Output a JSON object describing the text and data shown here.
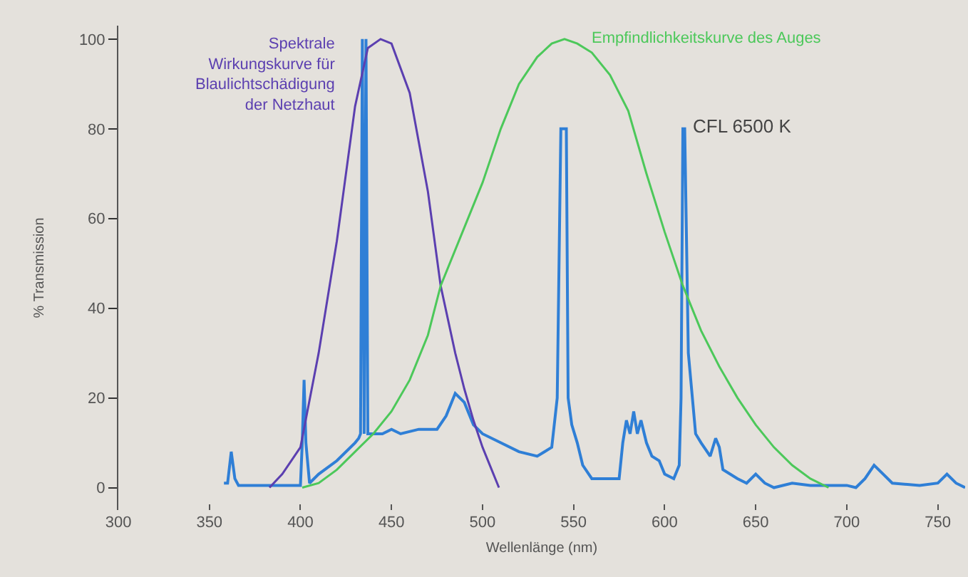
{
  "chart_data": {
    "type": "line",
    "xlabel": "Wellenlänge (nm)",
    "ylabel": "% Transmission",
    "xlim": [
      300,
      765
    ],
    "ylim": [
      -5,
      103
    ],
    "xticks": [
      300,
      350,
      400,
      450,
      500,
      550,
      600,
      650,
      700,
      750
    ],
    "yticks": [
      0,
      20,
      40,
      60,
      80,
      100
    ],
    "grid": false,
    "legend": false,
    "marker": "none",
    "line_style": "solid",
    "series": [
      {
        "color": "#2f7fd6",
        "x": [
          358,
          360,
          362,
          364,
          366,
          380,
          400,
          401,
          402,
          403,
          405,
          410,
          420,
          430,
          432,
          433,
          434,
          435,
          436,
          437,
          440,
          445,
          450,
          455,
          465,
          475,
          480,
          485,
          490,
          495,
          500,
          510,
          520,
          530,
          538,
          541,
          543,
          544,
          546,
          547,
          549,
          552,
          555,
          560,
          575,
          577,
          579,
          581,
          583,
          585,
          587,
          590,
          593,
          597,
          600,
          605,
          608,
          609,
          610,
          611,
          613,
          617,
          620,
          625,
          628,
          630,
          632,
          640,
          645,
          650,
          655,
          660,
          670,
          680,
          700,
          705,
          710,
          715,
          720,
          725,
          740,
          750,
          755,
          760,
          765
        ],
        "values": [
          1,
          1,
          8,
          2,
          0.5,
          0.5,
          0.5,
          10,
          24,
          10,
          1,
          3,
          6,
          10,
          11,
          12,
          100,
          12,
          100,
          12,
          12,
          12,
          13,
          12,
          13,
          13,
          16,
          21,
          19,
          14,
          12,
          10,
          8,
          7,
          9,
          20,
          80,
          80,
          80,
          20,
          14,
          10,
          5,
          2,
          2,
          10,
          15,
          12,
          17,
          12,
          15,
          10,
          7,
          6,
          3,
          2,
          5,
          20,
          80,
          80,
          30,
          12,
          10,
          7,
          11,
          9,
          4,
          2,
          1,
          3,
          1,
          0,
          1,
          0.5,
          0.5,
          0,
          2,
          5,
          3,
          1,
          0.5,
          1,
          3,
          1,
          0
        ]
      },
      {
        "name": "Spektrale\nWirkungskurve für\nBlaulichtschädigung\nder Netzhaut",
        "color": "#5b3fb0",
        "x": [
          383,
          390,
          400,
          410,
          416,
          420,
          430,
          437,
          444,
          450,
          460,
          470,
          477,
          485,
          490,
          495,
          500,
          505,
          509
        ],
        "values": [
          0,
          3,
          9,
          30,
          45,
          55,
          85,
          98,
          100,
          99,
          88,
          66,
          45,
          30,
          22,
          15,
          9,
          4,
          0
        ]
      },
      {
        "name": "Empfindlichkeitskurve des Auges",
        "color": "#4cc85a",
        "x": [
          401,
          410,
          420,
          430,
          440,
          450,
          460,
          470,
          477,
          490,
          500,
          510,
          520,
          530,
          538,
          545,
          552,
          560,
          570,
          580,
          590,
          600,
          610,
          620,
          630,
          640,
          650,
          660,
          670,
          680,
          690
        ],
        "values": [
          0,
          1,
          4,
          8,
          12,
          17,
          24,
          34,
          45,
          58,
          68,
          80,
          90,
          96,
          99,
          100,
          99,
          97,
          92,
          84,
          70,
          57,
          45,
          35,
          27,
          20,
          14,
          9,
          5,
          2,
          0
        ]
      }
    ],
    "annotations": [
      {
        "text": "CFL 6500 K",
        "x": 614,
        "y": 80
      }
    ]
  }
}
